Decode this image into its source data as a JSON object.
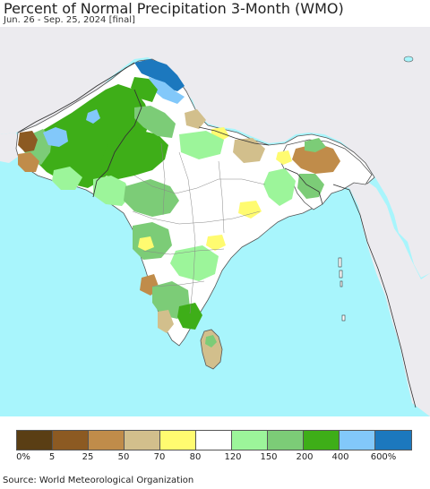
{
  "title": "Percent of Normal Precipitation 3-Month (WMO)",
  "subtitle": "Jun. 26 - Sep. 25, 2024 [final]",
  "source": "Source: World Meteorological Organization",
  "colors": {
    "ocean": "#a8f5fc",
    "land_outside": "#ecebef",
    "boundary": "#555555"
  },
  "legend": {
    "colors": [
      "#5a3e14",
      "#8c5a22",
      "#c08c4a",
      "#d2bf8c",
      "#fffb70",
      "#ffffff",
      "#9cf59a",
      "#7ccc77",
      "#3eae18",
      "#82c8fa",
      "#1c78be"
    ],
    "labels": [
      "0%",
      "5",
      "25",
      "50",
      "70",
      "80",
      "120",
      "150",
      "200",
      "400",
      "600%"
    ]
  }
}
